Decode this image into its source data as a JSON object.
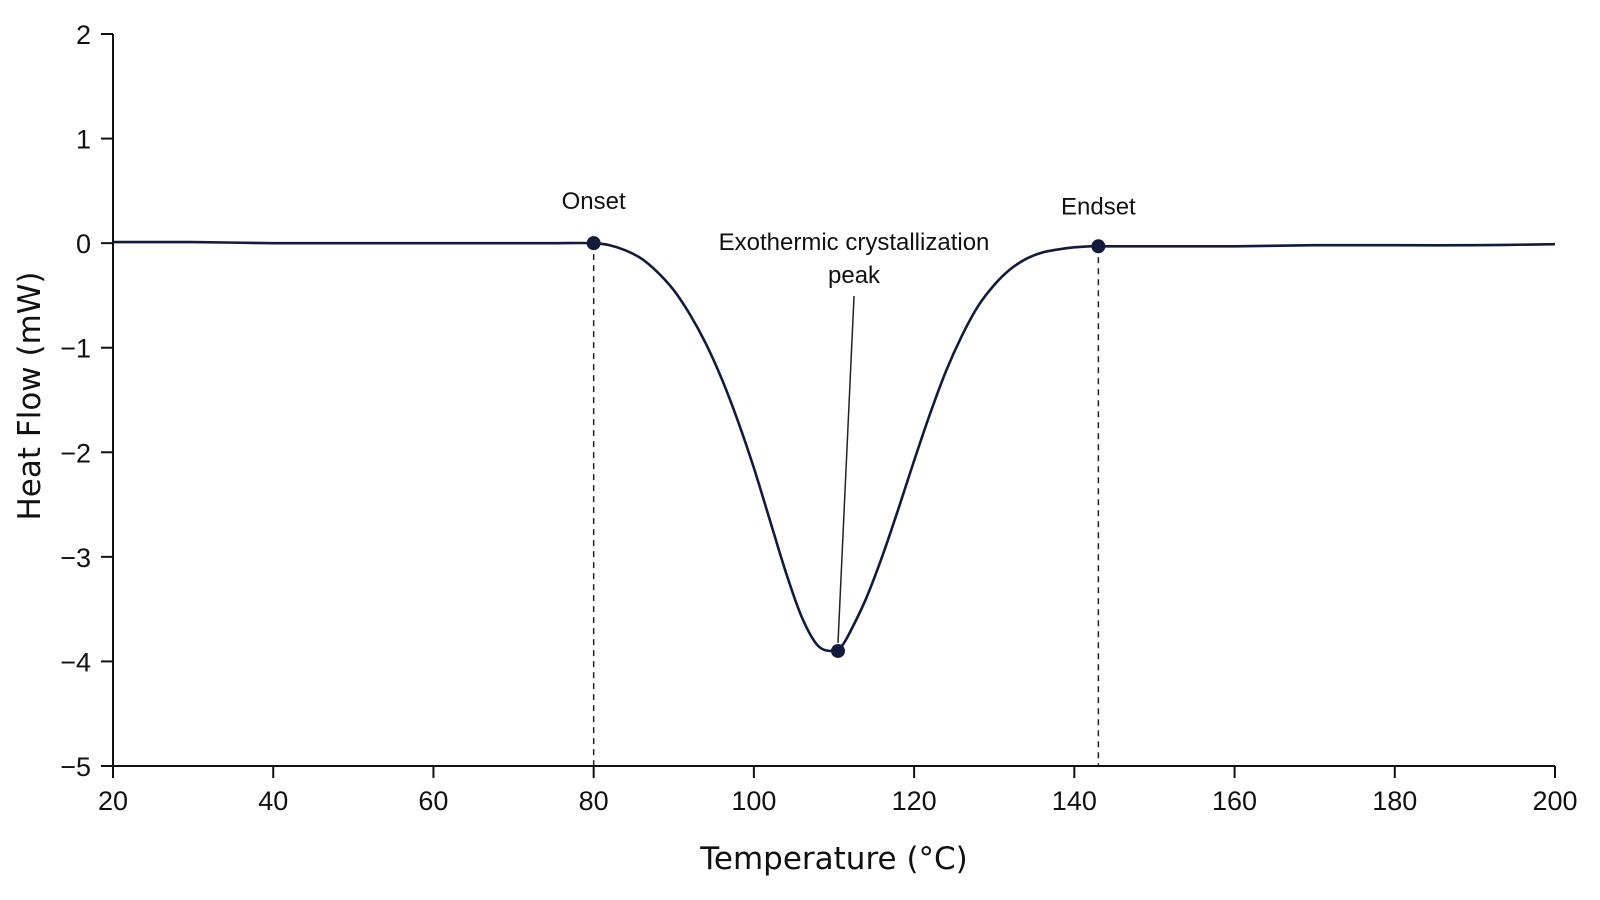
{
  "chart_data": {
    "type": "line",
    "title": "",
    "xlabel": "Temperature (°C)",
    "ylabel": "Heat Flow (mW)",
    "xlim": [
      20,
      200
    ],
    "ylim": [
      -5,
      2
    ],
    "x_ticks": [
      20,
      40,
      60,
      80,
      100,
      120,
      140,
      160,
      180,
      200
    ],
    "y_ticks": [
      2,
      1,
      0,
      -1,
      -2,
      -3,
      -4,
      -5
    ],
    "x_tick_labels": [
      "20",
      "40",
      "60",
      "80",
      "100",
      "120",
      "140",
      "160",
      "180",
      "200"
    ],
    "y_tick_labels": [
      "2",
      "1",
      "0",
      "−1",
      "−2",
      "−3",
      "−4",
      "−5"
    ],
    "grid": false,
    "line_color": "#141a3c",
    "series": [
      {
        "x": [
          20,
          30,
          40,
          50,
          60,
          70,
          75,
          80,
          82,
          84,
          86,
          88,
          90,
          92,
          94,
          96,
          98,
          100,
          102,
          104,
          106,
          108,
          110,
          111,
          112,
          114,
          116,
          118,
          120,
          122,
          124,
          126,
          128,
          130,
          132,
          134,
          136,
          138,
          140,
          142,
          143,
          146,
          150,
          160,
          170,
          180,
          190,
          200
        ],
        "values": [
          0.01,
          0.01,
          0.0,
          0.0,
          0.0,
          0.0,
          0.0,
          0.0,
          -0.02,
          -0.07,
          -0.15,
          -0.28,
          -0.45,
          -0.68,
          -0.96,
          -1.3,
          -1.7,
          -2.15,
          -2.65,
          -3.15,
          -3.58,
          -3.85,
          -3.9,
          -3.85,
          -3.72,
          -3.4,
          -3.0,
          -2.55,
          -2.08,
          -1.63,
          -1.22,
          -0.88,
          -0.6,
          -0.4,
          -0.25,
          -0.15,
          -0.09,
          -0.06,
          -0.04,
          -0.03,
          -0.03,
          -0.03,
          -0.03,
          -0.03,
          -0.02,
          -0.02,
          -0.02,
          -0.01
        ]
      }
    ],
    "markers": [
      {
        "x": 80,
        "y": 0.0,
        "label": "Onset",
        "dashed_drop": true
      },
      {
        "x": 110.5,
        "y": -3.9,
        "label_lines": [
          "Exothermic crystallization",
          "peak"
        ],
        "dashed_drop": false
      },
      {
        "x": 143,
        "y": -0.03,
        "label": "Endset",
        "dashed_drop": true
      }
    ]
  }
}
